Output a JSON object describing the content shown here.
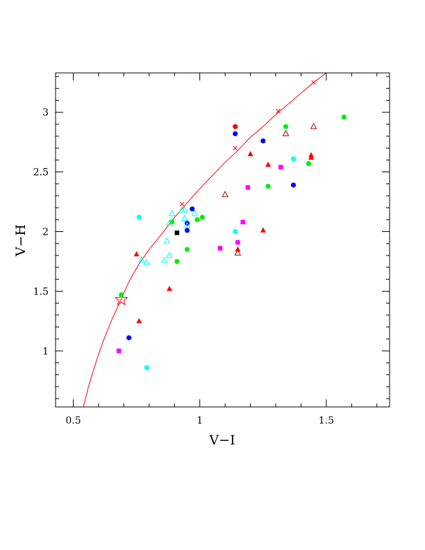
{
  "chart_data": {
    "type": "scatter",
    "xlabel": "V−I",
    "ylabel": "V−H",
    "xlim": [
      0.43,
      1.75
    ],
    "ylim": [
      0.53,
      3.33
    ],
    "xticks": [
      {
        "v": 0.5,
        "label": "0.5"
      },
      {
        "v": 1.0,
        "label": "1"
      },
      {
        "v": 1.5,
        "label": "1.5"
      }
    ],
    "yticks": [
      {
        "v": 1.0,
        "label": "1"
      },
      {
        "v": 1.5,
        "label": "1.5"
      },
      {
        "v": 2.0,
        "label": "2"
      },
      {
        "v": 2.5,
        "label": "2.5"
      },
      {
        "v": 3.0,
        "label": "3"
      }
    ],
    "x_minor_step": 0.1,
    "y_minor_step": 0.1,
    "colors": {
      "red": "#ff0000",
      "darkred": "#b00000",
      "green": "#00ee00",
      "blue": "#0000ff",
      "cyan": "#00ffff",
      "magenta": "#ff00ff",
      "black": "#000000",
      "curve": "#ff0000"
    },
    "curve": {
      "x": [
        0.54,
        0.56,
        0.58,
        0.6,
        0.62,
        0.65,
        0.68,
        0.72,
        0.76,
        0.8,
        0.85,
        0.9,
        0.95,
        1.0,
        1.05,
        1.1,
        1.15,
        1.2,
        1.25,
        1.3,
        1.35,
        1.4,
        1.45,
        1.5
      ],
      "y": [
        0.53,
        0.7,
        0.84,
        0.97,
        1.09,
        1.25,
        1.39,
        1.58,
        1.73,
        1.85,
        1.98,
        2.12,
        2.24,
        2.36,
        2.47,
        2.58,
        2.68,
        2.79,
        2.88,
        2.98,
        3.07,
        3.16,
        3.25,
        3.33
      ],
      "markers": {
        "x": [
          0.93,
          1.14,
          1.31,
          1.45
        ],
        "y": [
          2.23,
          2.7,
          3.01,
          3.25
        ]
      }
    },
    "star": {
      "x": 0.69,
      "y": 1.43
    },
    "series": [
      {
        "marker": "circle",
        "color": "red",
        "x": [
          1.14
        ],
        "y": [
          2.88
        ]
      },
      {
        "marker": "circle",
        "color": "green",
        "x": [
          0.69,
          0.89,
          0.91,
          0.95,
          0.99,
          1.01,
          1.27,
          1.34,
          1.43,
          1.57
        ],
        "y": [
          1.47,
          2.08,
          1.75,
          1.85,
          2.1,
          2.12,
          2.38,
          2.88,
          2.57,
          2.96
        ]
      },
      {
        "marker": "circle",
        "color": "blue",
        "x": [
          0.72,
          0.95,
          0.95,
          0.97,
          1.14,
          1.25,
          1.37
        ],
        "y": [
          1.11,
          2.07,
          2.01,
          2.19,
          2.82,
          2.76,
          2.39
        ]
      },
      {
        "marker": "circle",
        "color": "cyan",
        "x": [
          0.76,
          0.79,
          1.14,
          1.37
        ],
        "y": [
          2.12,
          0.86,
          2.0,
          2.61
        ]
      },
      {
        "marker": "square",
        "color": "magenta",
        "x": [
          0.68,
          1.08,
          1.15,
          1.17,
          1.19,
          1.32
        ],
        "y": [
          1.0,
          1.86,
          1.91,
          2.08,
          2.37,
          2.54
        ]
      },
      {
        "marker": "square",
        "color": "black",
        "x": [
          0.91
        ],
        "y": [
          1.99
        ]
      },
      {
        "marker": "triangle",
        "color": "red",
        "x": [
          0.75,
          0.76,
          0.88,
          1.15,
          1.2,
          1.25,
          1.27,
          1.44,
          1.44
        ],
        "y": [
          1.81,
          1.25,
          1.52,
          1.85,
          2.65,
          2.01,
          2.56,
          2.64,
          2.62
        ]
      },
      {
        "marker": "triangle-open",
        "color": "darkred",
        "x": [
          1.1,
          1.15,
          1.34,
          1.45
        ],
        "y": [
          2.31,
          1.82,
          2.82,
          2.88
        ]
      },
      {
        "marker": "triangle-open",
        "color": "cyan",
        "x": [
          0.77,
          0.79,
          0.86,
          0.87,
          0.88,
          0.88,
          0.89,
          0.93,
          0.94,
          0.94,
          0.95,
          0.98
        ],
        "y": [
          1.76,
          1.74,
          1.76,
          1.92,
          2.07,
          1.8,
          2.15,
          2.18,
          2.11,
          2.18,
          2.05,
          2.15
        ]
      }
    ]
  }
}
